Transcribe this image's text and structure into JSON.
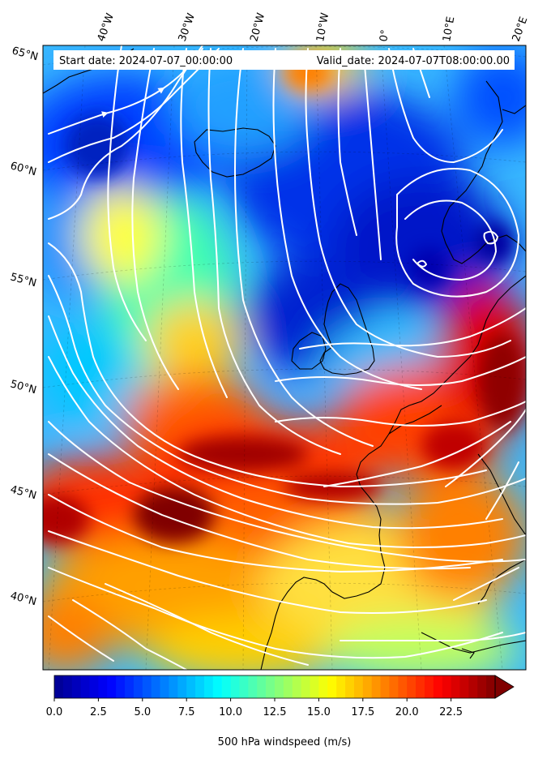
{
  "header": {
    "start_date": "Start date: 2024-07-07_00:00:00",
    "valid_date": "Valid_date: 2024-07-07T08:00:00.00"
  },
  "map": {
    "longitude_labels": [
      "40°W",
      "30°W",
      "20°W",
      "10°W",
      "0°",
      "10°E",
      "20°E"
    ],
    "latitude_labels": [
      "65°N",
      "60°N",
      "55°N",
      "50°N",
      "45°N",
      "40°N"
    ],
    "field_palette": [
      "#00008f",
      "#0000ff",
      "#0080ff",
      "#00ffff",
      "#80ff80",
      "#ffff00",
      "#ff8000",
      "#ff0000",
      "#800000"
    ],
    "streamline_color": "#ffffff",
    "coastline_color": "#000000"
  },
  "colorbar": {
    "tick_labels": [
      "0.0",
      "2.5",
      "5.0",
      "7.5",
      "10.0",
      "12.5",
      "15.0",
      "17.5",
      "20.0",
      "22.5"
    ],
    "vmin": 0,
    "vmax": 25,
    "extend": "max",
    "label": "500 hPa windspeed (m/s)"
  }
}
